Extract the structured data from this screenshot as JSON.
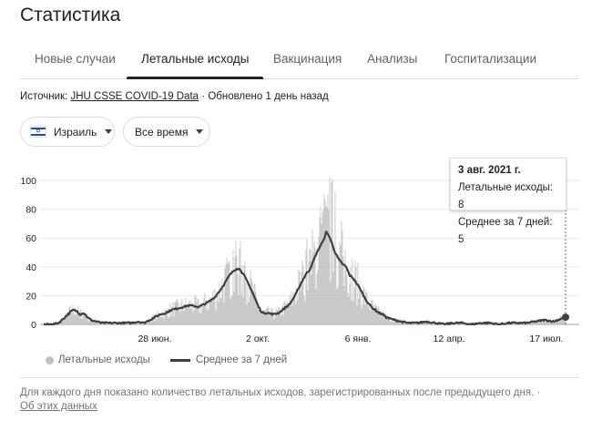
{
  "title": "Статистика",
  "tabs": [
    {
      "label": "Новые случаи"
    },
    {
      "label": "Летальные исходы"
    },
    {
      "label": "Вакцинация"
    },
    {
      "label": "Анализы"
    },
    {
      "label": "Госпитализации"
    }
  ],
  "active_tab": 1,
  "source": {
    "prefix": "Источник: ",
    "link": "JHU CSSE COVID-19 Data",
    "updated": " · Обновлено 1 день назад"
  },
  "filters": {
    "country": "Израиль",
    "range": "Все время"
  },
  "tooltip": {
    "date": "3 авг. 2021 г.",
    "daily": "Летальные исходы: 8",
    "avg": "Среднее за 7 дней: 5"
  },
  "legend": {
    "daily": "Летальные исходы",
    "avg": "Среднее за 7 дней"
  },
  "footnote": {
    "text": "Для каждого дня показано количество летальных исходов, зарегистрированных после предыдущего дня.  ·",
    "link": "Об этих данных"
  },
  "colors": {
    "bars": "#bdbdbd",
    "avg_line": "#3c4043",
    "flag_blue": "#1a50b3"
  },
  "chart_data": {
    "type": "bar",
    "x_ticks": [
      "28 июн.",
      "2 окт.",
      "6 янв.",
      "12 апр.",
      "17 июл."
    ],
    "y_ticks": [
      "0",
      "20",
      "40",
      "60",
      "80",
      "100"
    ],
    "ylim": [
      0,
      100
    ],
    "grid": true,
    "legend_position": "bottom-left",
    "series": [
      {
        "name": "Среднее за 7 дней",
        "type": "line",
        "points": [
          [
            0,
            0
          ],
          [
            10,
            0
          ],
          [
            16,
            1
          ],
          [
            20,
            3
          ],
          [
            25,
            6
          ],
          [
            30,
            9
          ],
          [
            33,
            10
          ],
          [
            37,
            9
          ],
          [
            40,
            7
          ],
          [
            44,
            8
          ],
          [
            48,
            5
          ],
          [
            52,
            3
          ],
          [
            58,
            2
          ],
          [
            64,
            1
          ],
          [
            72,
            1
          ],
          [
            80,
            1
          ],
          [
            88,
            1
          ],
          [
            96,
            1
          ],
          [
            104,
            2
          ],
          [
            110,
            1
          ],
          [
            116,
            3
          ],
          [
            122,
            5
          ],
          [
            128,
            7
          ],
          [
            134,
            8
          ],
          [
            140,
            10
          ],
          [
            146,
            11
          ],
          [
            152,
            12
          ],
          [
            158,
            13
          ],
          [
            164,
            13
          ],
          [
            170,
            12
          ],
          [
            176,
            14
          ],
          [
            182,
            16
          ],
          [
            188,
            19
          ],
          [
            194,
            24
          ],
          [
            200,
            30
          ],
          [
            204,
            34
          ],
          [
            208,
            37
          ],
          [
            212,
            39
          ],
          [
            216,
            38
          ],
          [
            220,
            34
          ],
          [
            224,
            29
          ],
          [
            228,
            24
          ],
          [
            232,
            18
          ],
          [
            236,
            12
          ],
          [
            240,
            8
          ],
          [
            246,
            8
          ],
          [
            252,
            7
          ],
          [
            258,
            8
          ],
          [
            264,
            11
          ],
          [
            270,
            14
          ],
          [
            276,
            20
          ],
          [
            282,
            28
          ],
          [
            288,
            35
          ],
          [
            292,
            38
          ],
          [
            296,
            44
          ],
          [
            300,
            50
          ],
          [
            304,
            55
          ],
          [
            307,
            58
          ],
          [
            310,
            64
          ],
          [
            313,
            62
          ],
          [
            316,
            57
          ],
          [
            320,
            50
          ],
          [
            324,
            45
          ],
          [
            328,
            42
          ],
          [
            332,
            40
          ],
          [
            336,
            34
          ],
          [
            340,
            32
          ],
          [
            344,
            28
          ],
          [
            348,
            24
          ],
          [
            352,
            19
          ],
          [
            356,
            15
          ],
          [
            360,
            12
          ],
          [
            364,
            10
          ],
          [
            368,
            8
          ],
          [
            372,
            7
          ],
          [
            376,
            5
          ],
          [
            380,
            4
          ],
          [
            386,
            3
          ],
          [
            392,
            2
          ],
          [
            400,
            1
          ],
          [
            410,
            1
          ],
          [
            420,
            2
          ],
          [
            430,
            1
          ],
          [
            440,
            0
          ],
          [
            450,
            1
          ],
          [
            460,
            1
          ],
          [
            470,
            0
          ],
          [
            480,
            1
          ],
          [
            490,
            1
          ],
          [
            500,
            0
          ],
          [
            510,
            1
          ],
          [
            520,
            1
          ],
          [
            530,
            1
          ],
          [
            540,
            2
          ],
          [
            550,
            3
          ],
          [
            560,
            2
          ],
          [
            568,
            4
          ],
          [
            573,
            5
          ]
        ]
      }
    ],
    "daily": {
      "name": "Летальные исходы",
      "note": "daily bars follow 7-day average with noise; peak ~100 near Jan",
      "peak": 101
    },
    "highlight": {
      "date": "3 авг. 2021 г.",
      "daily": 8,
      "avg": 5
    }
  }
}
